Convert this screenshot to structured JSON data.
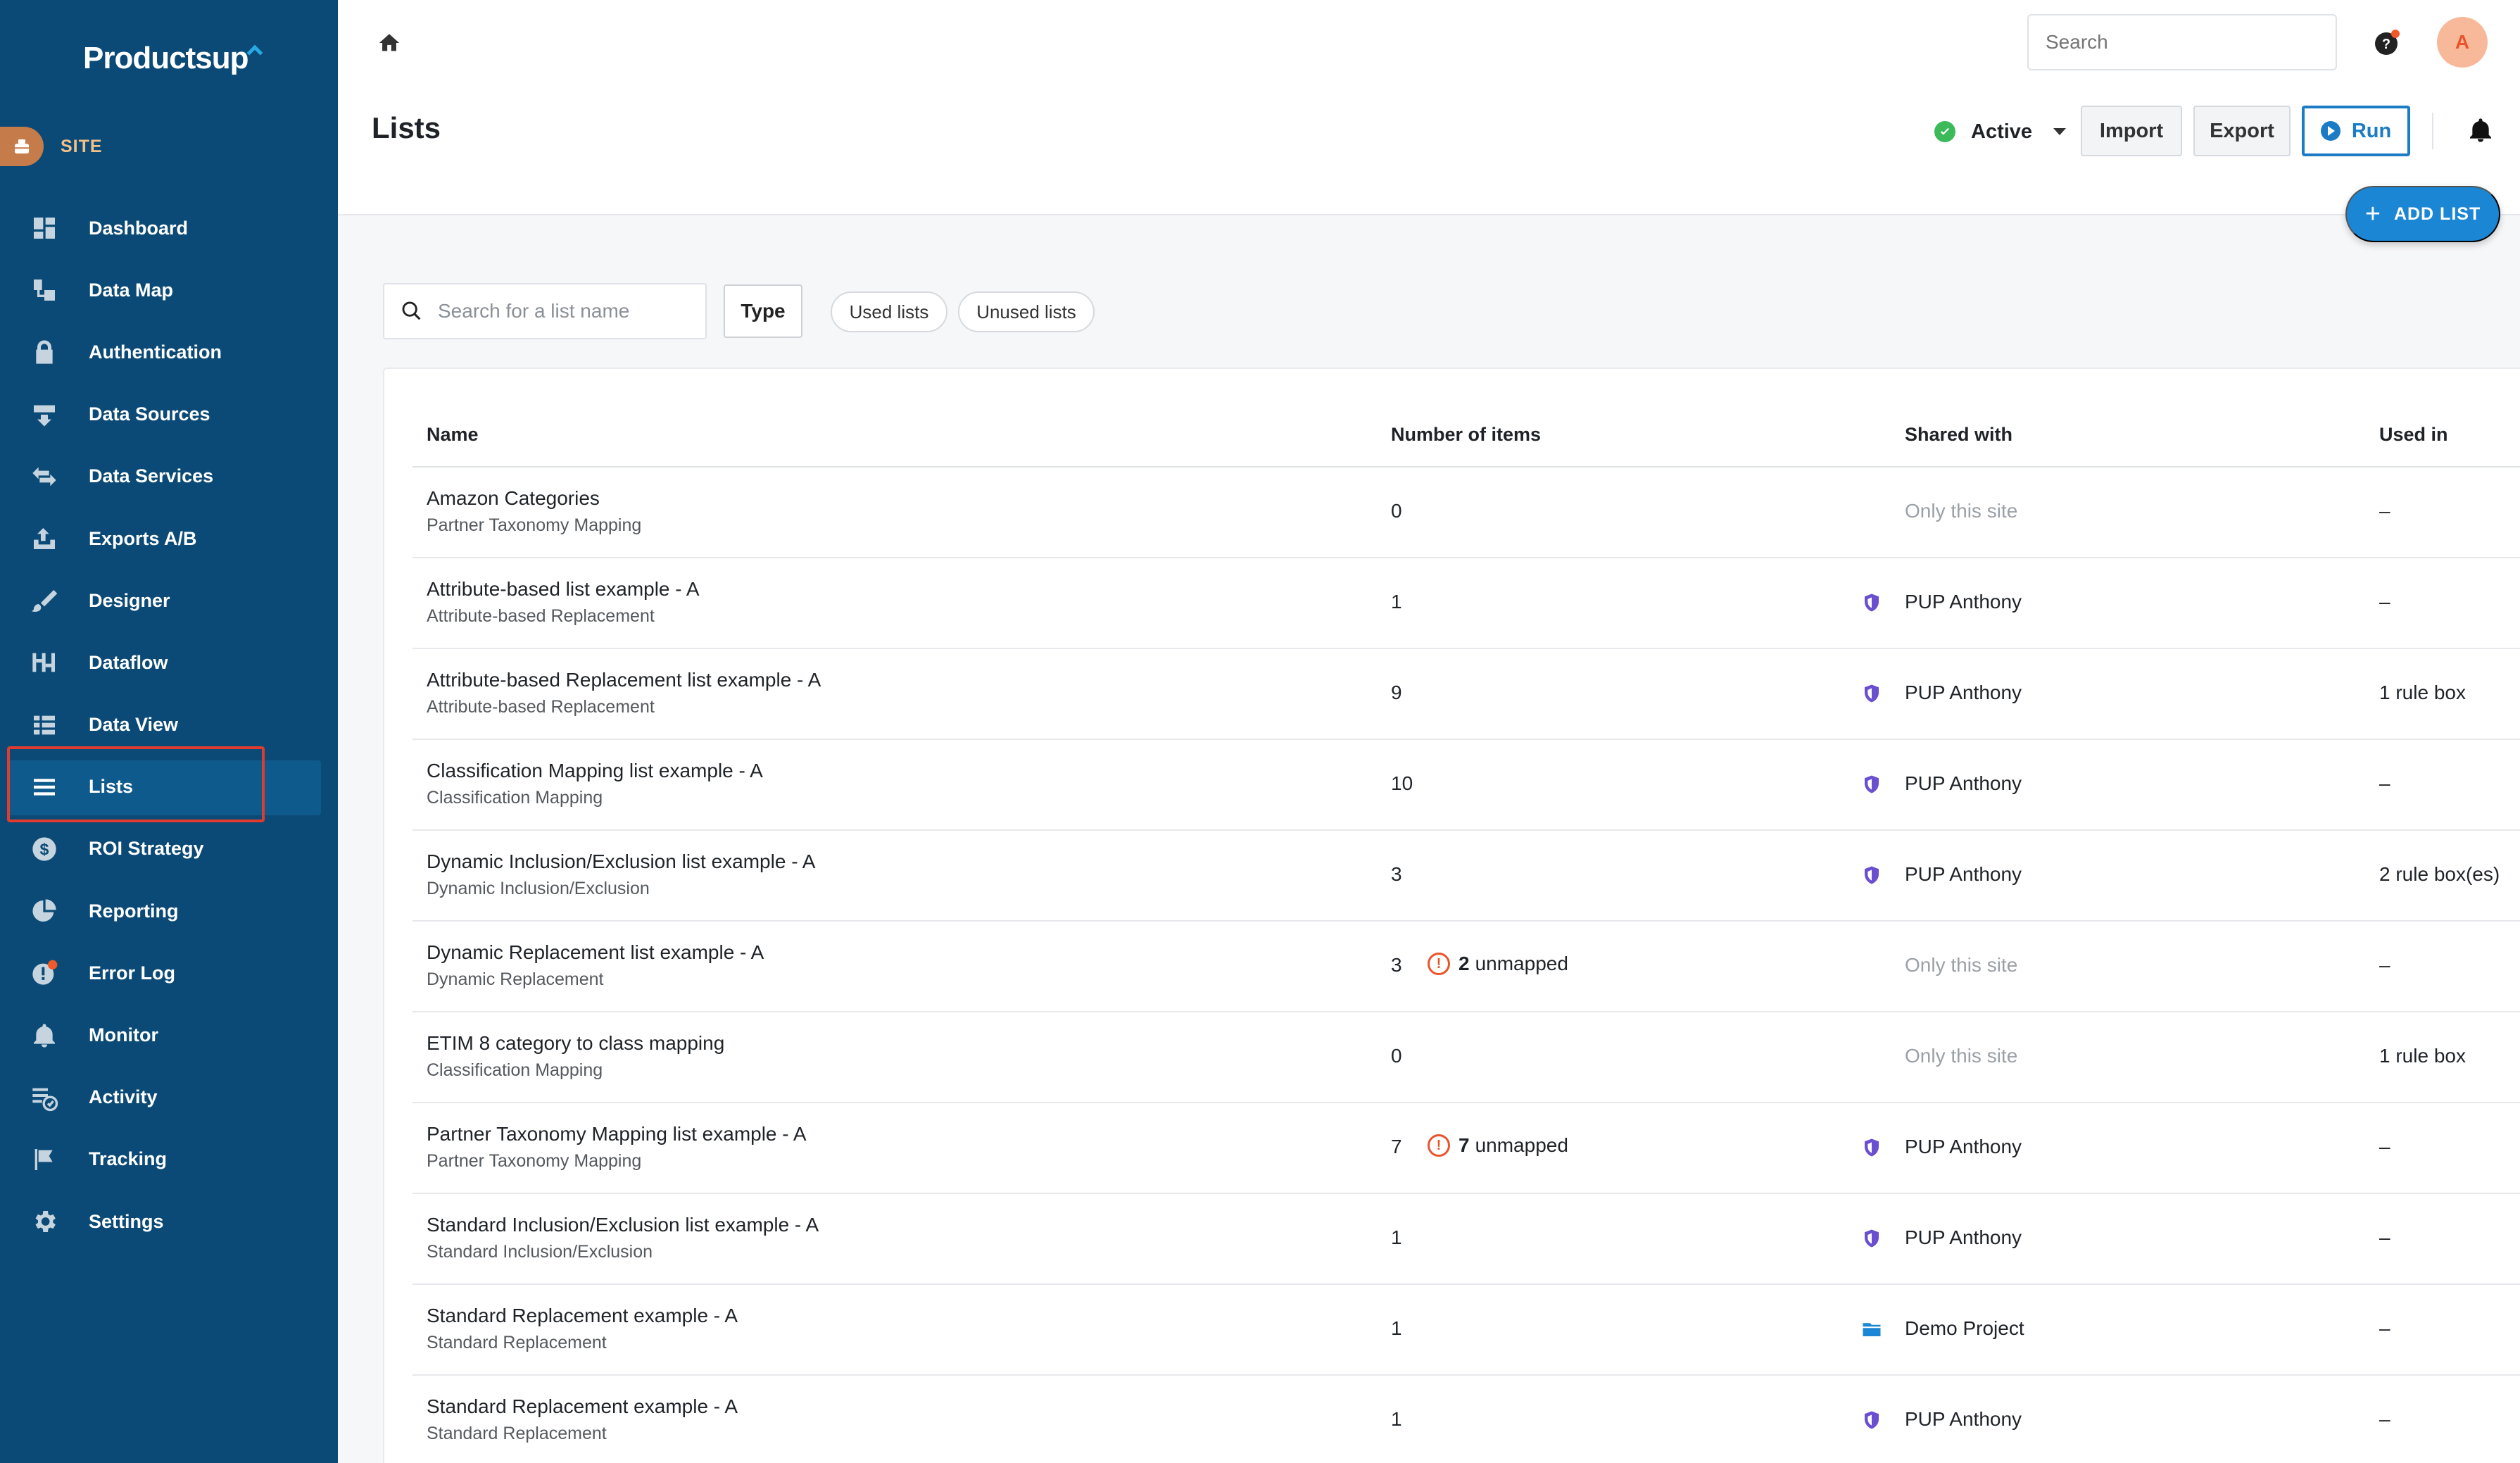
{
  "app": {
    "logo_text": "Productsup",
    "site_label": "SITE"
  },
  "sidebar": {
    "items": [
      {
        "label": "Dashboard",
        "icon": "dashboard-icon"
      },
      {
        "label": "Data Map",
        "icon": "data-map-icon"
      },
      {
        "label": "Authentication",
        "icon": "lock-icon"
      },
      {
        "label": "Data Sources",
        "icon": "data-sources-icon"
      },
      {
        "label": "Data Services",
        "icon": "swap-arrows-icon"
      },
      {
        "label": "Exports A/B",
        "icon": "export-tray-icon"
      },
      {
        "label": "Designer",
        "icon": "brush-icon"
      },
      {
        "label": "Dataflow",
        "icon": "dataflow-icon"
      },
      {
        "label": "Data View",
        "icon": "table-view-icon"
      },
      {
        "label": "Lists",
        "icon": "list-icon",
        "active": true
      },
      {
        "label": "ROI Strategy",
        "icon": "dollar-icon"
      },
      {
        "label": "Reporting",
        "icon": "pie-chart-icon"
      },
      {
        "label": "Error Log",
        "icon": "error-icon"
      },
      {
        "label": "Monitor",
        "icon": "bell-icon"
      },
      {
        "label": "Activity",
        "icon": "activity-icon"
      },
      {
        "label": "Tracking",
        "icon": "flag-icon"
      },
      {
        "label": "Settings",
        "icon": "gear-icon"
      }
    ]
  },
  "header": {
    "search_placeholder": "Search",
    "avatar_initial": "A",
    "page_title": "Lists",
    "status": "Active",
    "import_label": "Import",
    "export_label": "Export",
    "run_label": "Run",
    "add_list_label": "ADD LIST"
  },
  "filters": {
    "search_placeholder": "Search for a list name",
    "type_label": "Type",
    "chip_used": "Used lists",
    "chip_unused": "Unused lists"
  },
  "table": {
    "columns": {
      "name": "Name",
      "items": "Number of items",
      "shared": "Shared with",
      "used": "Used in"
    },
    "rows": [
      {
        "name": "Amazon Categories",
        "type": "Partner Taxonomy Mapping",
        "count": "0",
        "unmapped": "",
        "shared": "Only this site",
        "shared_icon": "",
        "used": "–"
      },
      {
        "name": "Attribute-based list example - A",
        "type": "Attribute-based Replacement",
        "count": "1",
        "unmapped": "",
        "shared": "PUP Anthony",
        "shared_icon": "shield-icon",
        "used": "–"
      },
      {
        "name": "Attribute-based Replacement list example - A",
        "type": "Attribute-based Replacement",
        "count": "9",
        "unmapped": "",
        "shared": "PUP Anthony",
        "shared_icon": "shield-icon",
        "used": "1 rule box"
      },
      {
        "name": "Classification Mapping list example - A",
        "type": "Classification Mapping",
        "count": "10",
        "unmapped": "",
        "shared": "PUP Anthony",
        "shared_icon": "shield-icon",
        "used": "–"
      },
      {
        "name": "Dynamic Inclusion/Exclusion list example - A",
        "type": "Dynamic Inclusion/Exclusion",
        "count": "3",
        "unmapped": "",
        "shared": "PUP Anthony",
        "shared_icon": "shield-icon",
        "used": "2 rule box(es)"
      },
      {
        "name": "Dynamic Replacement list example - A",
        "type": "Dynamic Replacement",
        "count": "3",
        "unmapped_count": "2",
        "unmapped": "unmapped",
        "shared": "Only this site",
        "shared_icon": "",
        "used": "–"
      },
      {
        "name": "ETIM 8 category to class mapping",
        "type": "Classification Mapping",
        "count": "0",
        "unmapped": "",
        "shared": "Only this site",
        "shared_icon": "",
        "used": "1 rule box"
      },
      {
        "name": "Partner Taxonomy Mapping list example - A",
        "type": "Partner Taxonomy Mapping",
        "count": "7",
        "unmapped_count": "7",
        "unmapped": "unmapped",
        "shared": "PUP Anthony",
        "shared_icon": "shield-icon",
        "used": "–"
      },
      {
        "name": "Standard Inclusion/Exclusion list example - A",
        "type": "Standard Inclusion/Exclusion",
        "count": "1",
        "unmapped": "",
        "shared": "PUP Anthony",
        "shared_icon": "shield-icon",
        "used": "–"
      },
      {
        "name": "Standard Replacement example - A",
        "type": "Standard Replacement",
        "count": "1",
        "unmapped": "",
        "shared": "Demo Project",
        "shared_icon": "folder-icon",
        "used": "–"
      },
      {
        "name": "Standard Replacement example - A",
        "type": "Standard Replacement",
        "count": "1",
        "unmapped": "",
        "shared": "PUP Anthony",
        "shared_icon": "shield-icon",
        "used": "–"
      }
    ]
  },
  "colors": {
    "sidebar": "#0b4a76",
    "accent": "#1b86d4",
    "warning": "#e8552c",
    "shield": "#6a4fd1",
    "status_ok": "#3cba5a"
  }
}
